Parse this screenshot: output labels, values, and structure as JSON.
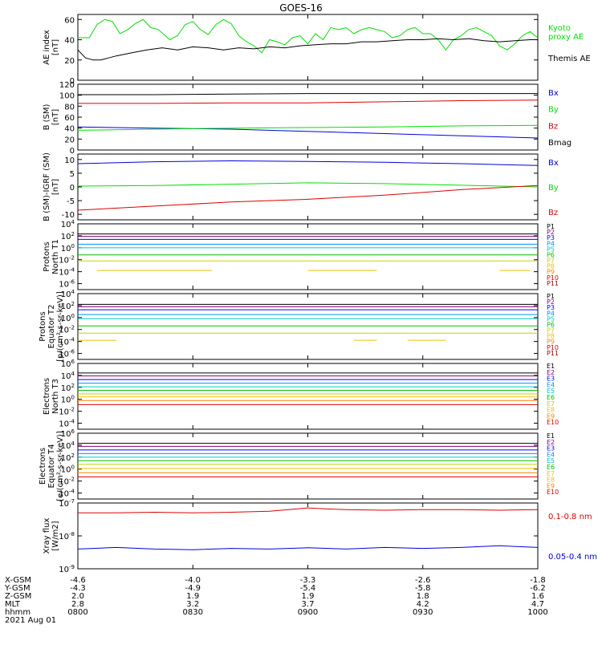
{
  "title": "GOES-16",
  "colors": {
    "frame": "#000000",
    "black": "#000000",
    "green": "#00e000",
    "red": "#e00000",
    "blue": "#0000e0",
    "bg": "#ffffff"
  },
  "chart_data": [
    {
      "type": "line",
      "ylabel": [
        "AE index",
        "[nT]"
      ],
      "yticks": [
        "60",
        "40",
        "20",
        "0"
      ],
      "ylim": [
        0,
        65
      ],
      "series": [
        {
          "name": "Kyoto proxy AE",
          "label_lines": [
            "Kyoto",
            "proxy AE"
          ],
          "color": "green",
          "x": [
            0,
            3,
            5,
            7,
            9,
            11,
            13,
            15,
            17,
            19,
            21,
            24,
            26,
            28,
            30,
            32,
            34,
            36,
            38,
            40,
            42,
            44,
            46,
            48,
            50,
            52,
            54,
            56,
            58,
            60,
            62,
            64,
            66,
            68,
            70,
            72,
            74,
            76,
            78,
            80,
            82,
            84,
            86,
            88,
            90,
            92,
            94,
            96,
            98,
            100,
            102,
            104,
            106,
            108,
            110,
            112,
            114,
            116,
            118,
            120
          ],
          "y": [
            42,
            42,
            55,
            60,
            58,
            46,
            50,
            56,
            60,
            52,
            50,
            40,
            44,
            55,
            58,
            50,
            45,
            55,
            60,
            56,
            44,
            38,
            34,
            27,
            40,
            38,
            35,
            42,
            44,
            36,
            46,
            40,
            52,
            50,
            52,
            46,
            50,
            52,
            50,
            48,
            42,
            44,
            50,
            52,
            46,
            46,
            40,
            30,
            40,
            44,
            50,
            52,
            48,
            44,
            34,
            30,
            36,
            44,
            48,
            42
          ]
        },
        {
          "name": "Themis AE",
          "label_lines": [
            "Themis AE"
          ],
          "color": "black",
          "x": [
            0,
            2,
            4,
            6,
            8,
            10,
            14,
            18,
            22,
            26,
            30,
            34,
            38,
            42,
            46,
            50,
            54,
            58,
            62,
            66,
            70,
            74,
            78,
            82,
            86,
            90,
            94,
            98,
            102,
            106,
            110,
            114,
            118,
            120
          ],
          "y": [
            30,
            22,
            20,
            20,
            22,
            24,
            27,
            30,
            32,
            30,
            33,
            32,
            30,
            32,
            31,
            33,
            32,
            34,
            35,
            36,
            36,
            38,
            38,
            39,
            40,
            40,
            41,
            40,
            41,
            39,
            38,
            39,
            40,
            40
          ]
        }
      ]
    },
    {
      "type": "line",
      "ylabel": [
        "B (SM)",
        "[nT]"
      ],
      "yticks": [
        "120",
        "100",
        "80",
        "60",
        "40",
        "20",
        "0"
      ],
      "ylim": [
        0,
        120
      ],
      "series": [
        {
          "name": "Bx",
          "label_lines": [
            "Bx"
          ],
          "color": "blue",
          "x": [
            0,
            20,
            40,
            60,
            80,
            100,
            120
          ],
          "y": [
            42,
            40,
            38,
            34,
            30,
            26,
            22
          ]
        },
        {
          "name": "By",
          "label_lines": [
            "By"
          ],
          "color": "green",
          "x": [
            0,
            20,
            40,
            60,
            80,
            100,
            120
          ],
          "y": [
            36,
            38,
            40,
            41,
            42,
            44,
            45
          ]
        },
        {
          "name": "Bz",
          "label_lines": [
            "Bz"
          ],
          "color": "red",
          "x": [
            0,
            20,
            40,
            60,
            80,
            100,
            120
          ],
          "y": [
            85,
            85,
            86,
            86,
            88,
            90,
            91
          ]
        },
        {
          "name": "Bmag",
          "label_lines": [
            "Bmag"
          ],
          "color": "black",
          "x": [
            0,
            20,
            40,
            60,
            80,
            100,
            120
          ],
          "y": [
            101,
            101,
            102,
            103,
            103,
            103,
            103
          ]
        }
      ]
    },
    {
      "type": "line",
      "ylabel": [
        "B (SM)-IGRF (SM)",
        "[nT]"
      ],
      "yticks": [
        "10",
        "5",
        "0",
        "-5",
        "-10"
      ],
      "ylim": [
        -12,
        12
      ],
      "series": [
        {
          "name": "Bx",
          "label_lines": [
            "Bx"
          ],
          "color": "blue",
          "x": [
            0,
            20,
            40,
            60,
            80,
            100,
            120
          ],
          "y": [
            8.5,
            9.2,
            9.5,
            9.3,
            9.0,
            8.5,
            7.8
          ]
        },
        {
          "name": "By",
          "label_lines": [
            "By"
          ],
          "color": "green",
          "x": [
            0,
            20,
            40,
            60,
            80,
            100,
            120
          ],
          "y": [
            0.3,
            0.5,
            1.0,
            1.5,
            1.2,
            0.6,
            0.0
          ]
        },
        {
          "name": "Bz",
          "label_lines": [
            "Bz"
          ],
          "color": "red",
          "x": [
            0,
            20,
            40,
            60,
            80,
            100,
            120
          ],
          "y": [
            -8.5,
            -7.0,
            -5.5,
            -4.5,
            -3.0,
            -1.0,
            0.5
          ]
        }
      ]
    },
    {
      "type": "line",
      "log": true,
      "ylabel": [
        "Protons",
        "North T1"
      ],
      "yticks": [
        "10^4",
        "10^2",
        "10^0",
        "10^-2",
        "10^-4",
        "10^-6"
      ],
      "ylim_exp": [
        -7,
        4
      ],
      "channels": [
        {
          "name": "P1",
          "color": "#000000",
          "y": 2.3
        },
        {
          "name": "P2",
          "color": "#7f007f",
          "y": 1.9
        },
        {
          "name": "P3",
          "color": "#0000ff",
          "y": 1.4
        },
        {
          "name": "P4",
          "color": "#0090ff",
          "y": 0.6
        },
        {
          "name": "P5",
          "color": "#00c8c8",
          "y": 0.0
        },
        {
          "name": "P6",
          "color": "#00c000",
          "y": -1.2
        },
        {
          "name": "P7",
          "color": "#c8d200",
          "y": -2.2
        },
        {
          "name": "P8",
          "color": "#f0c000",
          "y": -3.8,
          "segments": [
            [
              5,
              35
            ],
            [
              60,
              78
            ],
            [
              110,
              118
            ]
          ]
        },
        {
          "name": "P9",
          "color": "#ff8000",
          "y": null
        },
        {
          "name": "P10",
          "color": "#e00000",
          "y": null
        },
        {
          "name": "P11",
          "color": "#a00000",
          "y": null
        }
      ]
    },
    {
      "type": "line",
      "log": true,
      "ylabel": [
        "Protons",
        "Equator T2",
        "[p/(cm²-s-sr-keV)]"
      ],
      "yticks": [
        "10^4",
        "10^2",
        "10^0",
        "10^-2",
        "10^-4",
        "10^-6"
      ],
      "ylim_exp": [
        -7,
        4
      ],
      "channels": [
        {
          "name": "P1",
          "color": "#000000",
          "y": 2.2
        },
        {
          "name": "P2",
          "color": "#7f007f",
          "y": 1.8
        },
        {
          "name": "P3",
          "color": "#0000ff",
          "y": 1.3
        },
        {
          "name": "P4",
          "color": "#0090ff",
          "y": 0.5
        },
        {
          "name": "P5",
          "color": "#00c8c8",
          "y": -0.2
        },
        {
          "name": "P6",
          "color": "#00c000",
          "y": -1.4
        },
        {
          "name": "P7",
          "color": "#c8d200",
          "y": -2.6
        },
        {
          "name": "P8",
          "color": "#f0c000",
          "y": -3.8,
          "segments": [
            [
              0,
              10
            ],
            [
              72,
              78
            ],
            [
              86,
              96
            ]
          ]
        },
        {
          "name": "P9",
          "color": "#ff8000",
          "y": null
        },
        {
          "name": "P10",
          "color": "#e00000",
          "y": null
        },
        {
          "name": "P11",
          "color": "#a00000",
          "y": null
        }
      ]
    },
    {
      "type": "line",
      "log": true,
      "ylabel": [
        "Electrons",
        "North T3"
      ],
      "yticks": [
        "10^6",
        "10^4",
        "10^2",
        "10^0",
        "10^-2",
        "10^-4"
      ],
      "ylim_exp": [
        -5,
        6
      ],
      "channels": [
        {
          "name": "E1",
          "color": "#000000",
          "y": 4.4
        },
        {
          "name": "E2",
          "color": "#7f007f",
          "y": 3.9
        },
        {
          "name": "E3",
          "color": "#0000ff",
          "y": 3.3
        },
        {
          "name": "E4",
          "color": "#0090ff",
          "y": 2.7
        },
        {
          "name": "E5",
          "color": "#00c8c8",
          "y": 2.1
        },
        {
          "name": "E6",
          "color": "#00c000",
          "y": 1.5
        },
        {
          "name": "E7",
          "color": "#c8d200",
          "y": 0.9
        },
        {
          "name": "E8",
          "color": "#f0c000",
          "y": 0.4
        },
        {
          "name": "E9",
          "color": "#ff8000",
          "y": -0.2
        },
        {
          "name": "E10",
          "color": "#e00000",
          "y": -0.9
        }
      ]
    },
    {
      "type": "line",
      "log": true,
      "ylabel": [
        "Electrons",
        "Equator T4",
        "[e/(cm²-s-sr-keV)]"
      ],
      "yticks": [
        "10^6",
        "10^4",
        "10^2",
        "10^0",
        "10^-2",
        "10^-4"
      ],
      "ylim_exp": [
        -5,
        6
      ],
      "channels": [
        {
          "name": "E1",
          "color": "#000000",
          "y": 4.3
        },
        {
          "name": "E2",
          "color": "#7f007f",
          "y": 3.8
        },
        {
          "name": "E3",
          "color": "#0000ff",
          "y": 3.2
        },
        {
          "name": "E4",
          "color": "#0090ff",
          "y": 2.6
        },
        {
          "name": "E5",
          "color": "#00c8c8",
          "y": 2.0
        },
        {
          "name": "E6",
          "color": "#00c000",
          "y": 1.4
        },
        {
          "name": "E7",
          "color": "#c8d200",
          "y": 0.8
        },
        {
          "name": "E8",
          "color": "#f0c000",
          "y": 0.1
        },
        {
          "name": "E9",
          "color": "#ff8000",
          "y": -0.6
        },
        {
          "name": "E10",
          "color": "#e00000",
          "y": -1.3
        }
      ]
    },
    {
      "type": "line",
      "log": true,
      "ylabel": [
        "Xray flux",
        "[W/m2]"
      ],
      "yticks": [
        "10^-7",
        "10^-8",
        "10^-9"
      ],
      "ylim_exp": [
        -9,
        -7
      ],
      "series": [
        {
          "name": "0.1-0.8 nm",
          "label_lines": [
            "0.1-0.8 nm"
          ],
          "color": "red",
          "x": [
            0,
            10,
            20,
            30,
            40,
            50,
            55,
            60,
            65,
            70,
            80,
            90,
            100,
            110,
            120
          ],
          "y": [
            -7.3,
            -7.3,
            -7.28,
            -7.3,
            -7.28,
            -7.25,
            -7.2,
            -7.15,
            -7.18,
            -7.2,
            -7.22,
            -7.2,
            -7.2,
            -7.22,
            -7.2
          ]
        },
        {
          "name": "0.05-0.4 nm",
          "label_lines": [
            "0.05-0.4 nm"
          ],
          "color": "blue",
          "x": [
            0,
            10,
            20,
            30,
            40,
            50,
            60,
            70,
            80,
            90,
            100,
            110,
            120
          ],
          "y": [
            -8.4,
            -8.35,
            -8.4,
            -8.42,
            -8.38,
            -8.4,
            -8.36,
            -8.4,
            -8.35,
            -8.38,
            -8.35,
            -8.3,
            -8.35
          ]
        }
      ]
    }
  ],
  "x_axis": {
    "row_labels": [
      "X-GSM",
      "Y-GSM",
      "Z-GSM",
      "MLT",
      "hhmm",
      "2021 Aug 01"
    ],
    "ticks": [
      {
        "x_min": 0,
        "values": [
          "-4.6",
          "-4.3",
          "2.0",
          "2.8",
          "0800"
        ]
      },
      {
        "x_min": 30,
        "values": [
          "-4.0",
          "-4.9",
          "1.9",
          "3.2",
          "0830"
        ]
      },
      {
        "x_min": 60,
        "values": [
          "-3.3",
          "-5.4",
          "1.9",
          "3.7",
          "0900"
        ]
      },
      {
        "x_min": 90,
        "values": [
          "-2.6",
          "-5.8",
          "1.8",
          "4.2",
          "0930"
        ]
      },
      {
        "x_min": 120,
        "values": [
          "-1.8",
          "-6.2",
          "1.6",
          "4.7",
          "1000"
        ]
      }
    ]
  }
}
